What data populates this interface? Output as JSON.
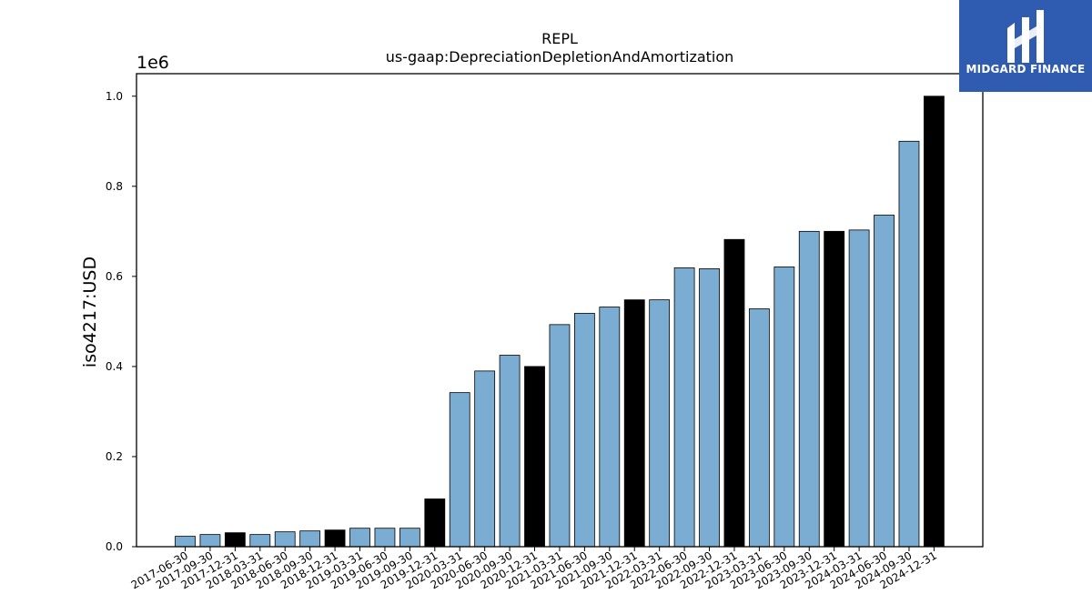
{
  "logo": {
    "text": "MIDGARD FINANCE"
  },
  "chart_data": {
    "type": "bar",
    "title": "REPL",
    "subtitle": "us-gaap:DepreciationDepletionAndAmortization",
    "ylabel": "iso4217:USD",
    "xlabel": "",
    "y_multiplier_label": "1e6",
    "ylim": [
      0,
      1.05
    ],
    "yticks": [
      "0.0",
      "0.2",
      "0.4",
      "0.6",
      "0.8",
      "1.0"
    ],
    "categories": [
      "2017-06-30",
      "2017-09-30",
      "2017-12-31",
      "2018-03-31",
      "2018-06-30",
      "2018-09-30",
      "2018-12-31",
      "2019-03-31",
      "2019-06-30",
      "2019-09-30",
      "2019-12-31",
      "2020-03-31",
      "2020-06-30",
      "2020-09-30",
      "2020-12-31",
      "2021-03-31",
      "2021-06-30",
      "2021-09-30",
      "2021-12-31",
      "2022-03-31",
      "2022-06-30",
      "2022-09-30",
      "2022-12-31",
      "2023-03-31",
      "2023-06-30",
      "2023-09-30",
      "2023-12-31",
      "2024-03-31",
      "2024-06-30",
      "2024-09-30",
      "2024-12-31"
    ],
    "values": [
      0.023,
      0.027,
      0.031,
      0.027,
      0.033,
      0.035,
      0.037,
      0.041,
      0.041,
      0.041,
      0.106,
      0.342,
      0.39,
      0.425,
      0.4,
      0.493,
      0.518,
      0.532,
      0.548,
      0.548,
      0.619,
      0.617,
      0.682,
      0.528,
      0.621,
      0.7,
      0.7,
      0.703,
      0.736,
      0.9,
      1.0
    ],
    "year_end_color": "#000000",
    "bar_color": "#7bacd1",
    "grid": false,
    "legend": "none"
  }
}
